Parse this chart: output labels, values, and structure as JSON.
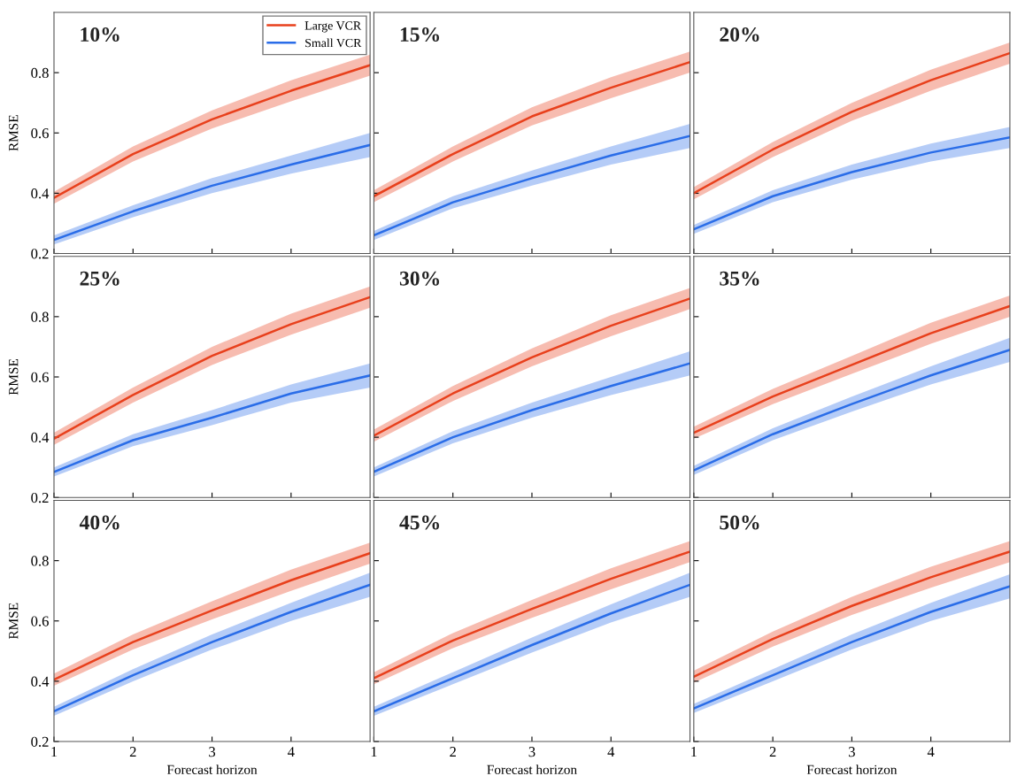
{
  "chart_data": [
    {
      "type": "line",
      "title": "10%",
      "ylabel": "RMSE",
      "xlim": [
        1,
        5
      ],
      "xticks": [
        1,
        2,
        3,
        4
      ],
      "ylim": [
        0.2,
        1.0
      ],
      "yticks": [
        0.2,
        0.4,
        0.6,
        0.8
      ],
      "grid": false,
      "legend": "top right",
      "tick_labels": "y",
      "x": [
        1,
        2,
        3,
        4,
        5
      ],
      "series": [
        {
          "name": "Large VCR",
          "color": "#e8401c",
          "values": [
            0.385,
            0.53,
            0.645,
            0.74,
            0.825
          ],
          "lower": [
            0.365,
            0.505,
            0.615,
            0.705,
            0.79
          ],
          "upper": [
            0.405,
            0.555,
            0.675,
            0.775,
            0.86
          ]
        },
        {
          "name": "Small VCR",
          "color": "#2a6de8",
          "values": [
            0.245,
            0.34,
            0.425,
            0.495,
            0.56
          ],
          "lower": [
            0.23,
            0.32,
            0.4,
            0.465,
            0.52
          ],
          "upper": [
            0.26,
            0.36,
            0.45,
            0.525,
            0.6
          ]
        }
      ]
    },
    {
      "type": "line",
      "title": "15%",
      "xlim": [
        1,
        5
      ],
      "xticks": [
        1,
        2,
        3,
        4
      ],
      "ylim": [
        0.2,
        1.0
      ],
      "yticks": [
        0.2,
        0.4,
        0.6,
        0.8
      ],
      "grid": false,
      "tick_labels": false,
      "x": [
        1,
        2,
        3,
        4,
        5
      ],
      "series": [
        {
          "color": "#e8401c",
          "values": [
            0.39,
            0.53,
            0.655,
            0.75,
            0.835
          ],
          "lower": [
            0.37,
            0.505,
            0.625,
            0.715,
            0.8
          ],
          "upper": [
            0.41,
            0.555,
            0.685,
            0.785,
            0.87
          ]
        },
        {
          "color": "#2a6de8",
          "values": [
            0.26,
            0.37,
            0.45,
            0.525,
            0.59
          ],
          "lower": [
            0.245,
            0.35,
            0.425,
            0.495,
            0.55
          ],
          "upper": [
            0.275,
            0.39,
            0.475,
            0.555,
            0.63
          ]
        }
      ]
    },
    {
      "type": "line",
      "title": "20%",
      "xlim": [
        1,
        5
      ],
      "xticks": [
        1,
        2,
        3,
        4
      ],
      "ylim": [
        0.2,
        1.0
      ],
      "yticks": [
        0.2,
        0.4,
        0.6,
        0.8
      ],
      "grid": false,
      "tick_labels": false,
      "x": [
        1,
        2,
        3,
        4,
        5
      ],
      "series": [
        {
          "color": "#e8401c",
          "values": [
            0.4,
            0.545,
            0.67,
            0.775,
            0.865
          ],
          "lower": [
            0.38,
            0.52,
            0.64,
            0.74,
            0.83
          ],
          "upper": [
            0.42,
            0.57,
            0.7,
            0.81,
            0.9
          ]
        },
        {
          "color": "#2a6de8",
          "values": [
            0.28,
            0.39,
            0.47,
            0.535,
            0.585
          ],
          "lower": [
            0.265,
            0.37,
            0.445,
            0.505,
            0.55
          ],
          "upper": [
            0.295,
            0.41,
            0.495,
            0.565,
            0.62
          ]
        }
      ]
    },
    {
      "type": "line",
      "title": "25%",
      "ylabel": "RMSE",
      "xlim": [
        1,
        5
      ],
      "xticks": [
        1,
        2,
        3,
        4
      ],
      "ylim": [
        0.2,
        1.0
      ],
      "yticks": [
        0.2,
        0.4,
        0.6,
        0.8
      ],
      "grid": false,
      "tick_labels": "y",
      "x": [
        1,
        2,
        3,
        4,
        5
      ],
      "series": [
        {
          "color": "#e8401c",
          "values": [
            0.395,
            0.54,
            0.67,
            0.775,
            0.865
          ],
          "lower": [
            0.375,
            0.515,
            0.64,
            0.74,
            0.83
          ],
          "upper": [
            0.415,
            0.565,
            0.7,
            0.81,
            0.9
          ]
        },
        {
          "color": "#2a6de8",
          "values": [
            0.285,
            0.39,
            0.465,
            0.545,
            0.605
          ],
          "lower": [
            0.27,
            0.37,
            0.44,
            0.515,
            0.565
          ],
          "upper": [
            0.3,
            0.41,
            0.49,
            0.575,
            0.645
          ]
        }
      ]
    },
    {
      "type": "line",
      "title": "30%",
      "xlim": [
        1,
        5
      ],
      "xticks": [
        1,
        2,
        3,
        4
      ],
      "ylim": [
        0.2,
        1.0
      ],
      "yticks": [
        0.2,
        0.4,
        0.6,
        0.8
      ],
      "grid": false,
      "tick_labels": false,
      "x": [
        1,
        2,
        3,
        4,
        5
      ],
      "series": [
        {
          "color": "#e8401c",
          "values": [
            0.405,
            0.545,
            0.665,
            0.77,
            0.86
          ],
          "lower": [
            0.385,
            0.52,
            0.635,
            0.735,
            0.825
          ],
          "upper": [
            0.425,
            0.57,
            0.695,
            0.805,
            0.895
          ]
        },
        {
          "color": "#2a6de8",
          "values": [
            0.285,
            0.4,
            0.49,
            0.57,
            0.645
          ],
          "lower": [
            0.27,
            0.38,
            0.465,
            0.54,
            0.605
          ],
          "upper": [
            0.3,
            0.42,
            0.515,
            0.6,
            0.685
          ]
        }
      ]
    },
    {
      "type": "line",
      "title": "35%",
      "xlim": [
        1,
        5
      ],
      "xticks": [
        1,
        2,
        3,
        4
      ],
      "ylim": [
        0.2,
        1.0
      ],
      "yticks": [
        0.2,
        0.4,
        0.6,
        0.8
      ],
      "grid": false,
      "tick_labels": false,
      "x": [
        1,
        2,
        3,
        4,
        5
      ],
      "series": [
        {
          "color": "#e8401c",
          "values": [
            0.415,
            0.535,
            0.64,
            0.745,
            0.835
          ],
          "lower": [
            0.395,
            0.51,
            0.61,
            0.71,
            0.8
          ],
          "upper": [
            0.435,
            0.56,
            0.67,
            0.78,
            0.87
          ]
        },
        {
          "color": "#2a6de8",
          "values": [
            0.29,
            0.41,
            0.51,
            0.605,
            0.69
          ],
          "lower": [
            0.275,
            0.39,
            0.485,
            0.575,
            0.65
          ],
          "upper": [
            0.305,
            0.43,
            0.535,
            0.635,
            0.73
          ]
        }
      ]
    },
    {
      "type": "line",
      "title": "40%",
      "ylabel": "RMSE",
      "xlabel": "Forecast horizon",
      "xlim": [
        1,
        5
      ],
      "xticks": [
        1,
        2,
        3,
        4
      ],
      "ylim": [
        0.2,
        1.0
      ],
      "yticks": [
        0.2,
        0.4,
        0.6,
        0.8
      ],
      "grid": false,
      "x": [
        1,
        2,
        3,
        4,
        5
      ],
      "series": [
        {
          "color": "#e8401c",
          "values": [
            0.405,
            0.53,
            0.635,
            0.735,
            0.825
          ],
          "lower": [
            0.385,
            0.505,
            0.605,
            0.7,
            0.79
          ],
          "upper": [
            0.425,
            0.555,
            0.665,
            0.77,
            0.86
          ]
        },
        {
          "color": "#2a6de8",
          "values": [
            0.3,
            0.42,
            0.53,
            0.63,
            0.72
          ],
          "lower": [
            0.285,
            0.4,
            0.505,
            0.6,
            0.68
          ],
          "upper": [
            0.315,
            0.44,
            0.555,
            0.66,
            0.76
          ]
        }
      ]
    },
    {
      "type": "line",
      "title": "45%",
      "xlabel": "Forecast horizon",
      "xlim": [
        1,
        5
      ],
      "xticks": [
        1,
        2,
        3,
        4
      ],
      "ylim": [
        0.2,
        1.0
      ],
      "yticks": [
        0.2,
        0.4,
        0.6,
        0.8
      ],
      "grid": false,
      "tick_labels": "x",
      "x": [
        1,
        2,
        3,
        4,
        5
      ],
      "series": [
        {
          "color": "#e8401c",
          "values": [
            0.41,
            0.535,
            0.64,
            0.74,
            0.83
          ],
          "lower": [
            0.39,
            0.51,
            0.61,
            0.705,
            0.795
          ],
          "upper": [
            0.43,
            0.56,
            0.67,
            0.775,
            0.865
          ]
        },
        {
          "color": "#2a6de8",
          "values": [
            0.3,
            0.41,
            0.52,
            0.625,
            0.72
          ],
          "lower": [
            0.285,
            0.39,
            0.495,
            0.595,
            0.68
          ],
          "upper": [
            0.315,
            0.43,
            0.545,
            0.655,
            0.76
          ]
        }
      ]
    },
    {
      "type": "line",
      "title": "50%",
      "xlabel": "Forecast horizon",
      "xlim": [
        1,
        5
      ],
      "xticks": [
        1,
        2,
        3,
        4
      ],
      "ylim": [
        0.2,
        1.0
      ],
      "yticks": [
        0.2,
        0.4,
        0.6,
        0.8
      ],
      "grid": false,
      "tick_labels": "x",
      "x": [
        1,
        2,
        3,
        4,
        5
      ],
      "series": [
        {
          "color": "#e8401c",
          "values": [
            0.415,
            0.54,
            0.65,
            0.745,
            0.83
          ],
          "lower": [
            0.395,
            0.515,
            0.62,
            0.71,
            0.795
          ],
          "upper": [
            0.435,
            0.565,
            0.68,
            0.78,
            0.865
          ]
        },
        {
          "color": "#2a6de8",
          "values": [
            0.31,
            0.42,
            0.53,
            0.63,
            0.715
          ],
          "lower": [
            0.295,
            0.4,
            0.505,
            0.6,
            0.675
          ],
          "upper": [
            0.325,
            0.44,
            0.555,
            0.66,
            0.755
          ]
        }
      ]
    }
  ]
}
